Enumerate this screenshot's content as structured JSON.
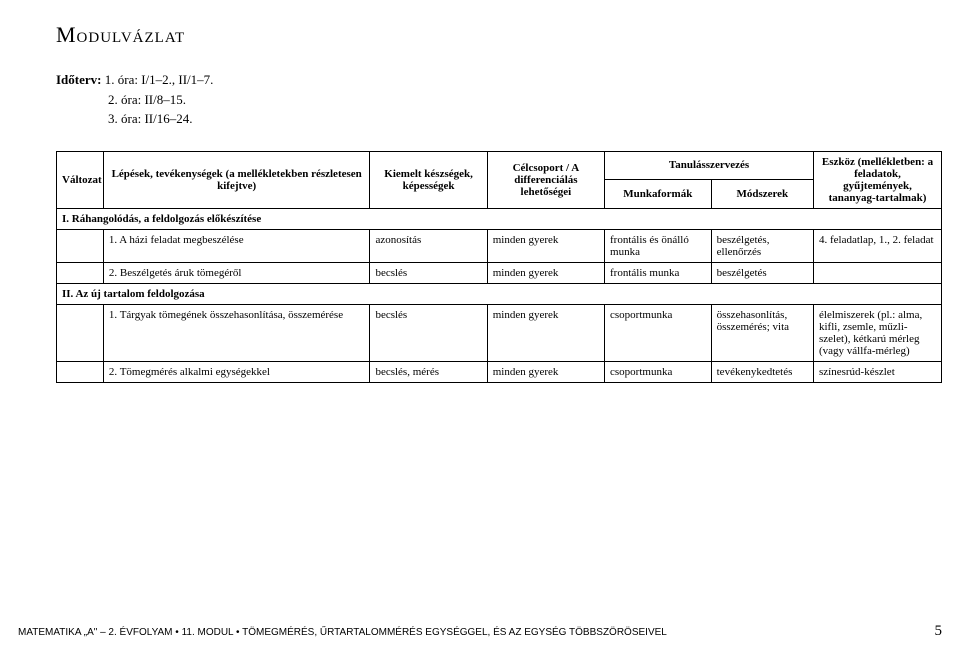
{
  "title": "Modulvázlat",
  "timeplan": {
    "label": "Időterv:",
    "lines": [
      "1. óra: I/1–2., II/1–7.",
      "2. óra: II/8–15.",
      "3. óra: II/16–24."
    ]
  },
  "table": {
    "headers": {
      "variant": "Változat",
      "steps": "Lépések, tevékenységek\n(a mellékletekben részletesen kifejtve)",
      "skills": "Kiemelt készségek, képességek",
      "target": "Célcsoport /\nA differenciálás lehetőségei",
      "org": "Tanulásszervezés",
      "forms": "Munkaformák",
      "methods": "Módszerek",
      "tools": "Eszköz\n(mellékletben: a feladatok, gyűjtemények, tananyag-tartalmak)"
    },
    "sections": [
      {
        "heading": "I. Ráhangolódás, a feldolgozás előkészítése",
        "rows": [
          {
            "step": "1. A házi feladat megbeszélése",
            "skill": "azonosítás",
            "target": "minden gyerek",
            "form": "frontális és önálló munka",
            "method": "beszélgetés, ellenőrzés",
            "tool": "4. feladatlap, 1., 2. feladat"
          },
          {
            "step": "2. Beszélgetés áruk tömegéről",
            "skill": "becslés",
            "target": "minden gyerek",
            "form": "frontális munka",
            "method": "beszélgetés",
            "tool": ""
          }
        ]
      },
      {
        "heading": "II. Az új tartalom feldolgozása",
        "rows": [
          {
            "step": "1. Tárgyak tömegének összehasonlítása, összemérése",
            "skill": "becslés",
            "target": "minden gyerek",
            "form": "csoportmunka",
            "method": "összehasonlítás, összemérés; vita",
            "tool": "élelmiszerek (pl.: alma, kifli, zsemle, műzli-szelet), kétkarú mérleg (vagy vállfa-mérleg)"
          },
          {
            "step": "2. Tömegmérés alkalmi egységekkel",
            "skill": "becslés, mérés",
            "target": "minden gyerek",
            "form": "csoportmunka",
            "method": "tevékenykedtetés",
            "tool": "színesrúd-készlet"
          }
        ]
      }
    ]
  },
  "footer": {
    "left": "MATEMATIKA „A\" – 2. ÉVFOLYAM • 11. MODUL • TÖMEGMÉRÉS, ŰRTARTALOMMÉRÉS EGYSÉGGEL, ÉS AZ EGYSÉG TÖBBSZÖRÖSEIVEL",
    "page": "5"
  }
}
